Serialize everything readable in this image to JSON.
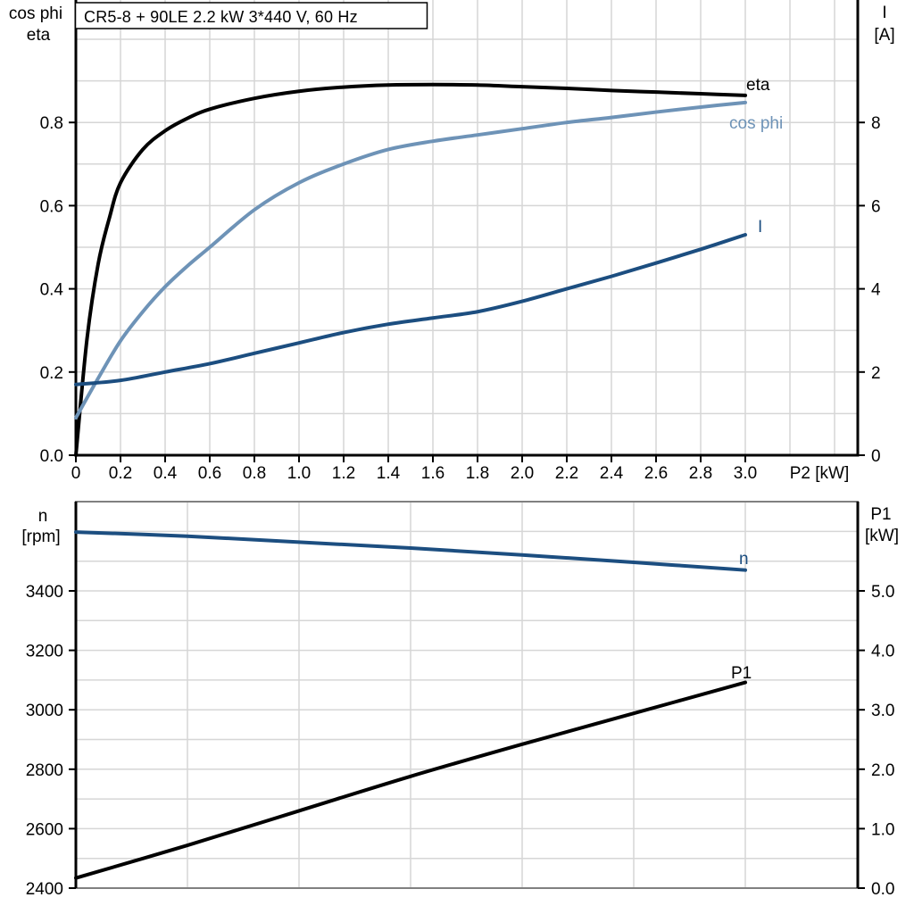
{
  "title": "CR5-8 + 90LE   2.2 kW   3*440 V, 60 Hz",
  "colors": {
    "black": "#000000",
    "dark_blue": "#1C4E80",
    "light_blue": "#6E93B7",
    "grid": "#D6D6D6",
    "frame_gray": "#808080",
    "background": "#FFFFFF"
  },
  "chart_data": [
    {
      "type": "line",
      "title": "CR5-8 + 90LE   2.2 kW   3*440 V, 60 Hz",
      "x_axis": {
        "label": "P2 [kW]",
        "min": 0,
        "max": 3.5,
        "tick_values": [
          0,
          0.2,
          0.4,
          0.6,
          0.8,
          1.0,
          1.2,
          1.4,
          1.6,
          1.8,
          2.0,
          2.2,
          2.4,
          2.6,
          2.8,
          3.0
        ],
        "tick_labels": [
          "0",
          "0.2",
          "0.4",
          "0.6",
          "0.8",
          "1.0",
          "1.2",
          "1.4",
          "1.6",
          "1.8",
          "2.0",
          "2.2",
          "2.4",
          "2.6",
          "2.8",
          "3.0"
        ],
        "grid_step": 0.2
      },
      "y_left": {
        "header": [
          "cos phi",
          "eta"
        ],
        "min": 0,
        "max": 0.98,
        "tick_values": [
          0,
          0.2,
          0.4,
          0.6,
          0.8
        ],
        "tick_labels": [
          "0.0",
          "0.2",
          "0.4",
          "0.6",
          "0.8"
        ],
        "grid_step": 0.1
      },
      "y_right": {
        "header": [
          "I",
          "[A]"
        ],
        "min": 0,
        "max": 9.8,
        "tick_values": [
          0,
          2,
          4,
          6,
          8
        ],
        "tick_labels": [
          "0",
          "2",
          "4",
          "6",
          "8"
        ]
      },
      "grid": true,
      "legend_position": "inline-labels",
      "series": [
        {
          "label": "eta",
          "axis": "left",
          "color_key": "black",
          "points": [
            [
              0,
              0
            ],
            [
              0.05,
              0.28
            ],
            [
              0.1,
              0.46
            ],
            [
              0.15,
              0.57
            ],
            [
              0.2,
              0.655
            ],
            [
              0.3,
              0.735
            ],
            [
              0.4,
              0.78
            ],
            [
              0.5,
              0.81
            ],
            [
              0.6,
              0.832
            ],
            [
              0.8,
              0.858
            ],
            [
              1.0,
              0.875
            ],
            [
              1.2,
              0.885
            ],
            [
              1.4,
              0.89
            ],
            [
              1.6,
              0.891
            ],
            [
              1.8,
              0.89
            ],
            [
              2.0,
              0.886
            ],
            [
              2.2,
              0.882
            ],
            [
              2.4,
              0.877
            ],
            [
              2.6,
              0.873
            ],
            [
              2.8,
              0.869
            ],
            [
              3.0,
              0.865
            ]
          ]
        },
        {
          "label": "cos phi",
          "axis": "left",
          "color_key": "light_blue",
          "points": [
            [
              0,
              0.09
            ],
            [
              0.1,
              0.185
            ],
            [
              0.2,
              0.275
            ],
            [
              0.3,
              0.345
            ],
            [
              0.4,
              0.405
            ],
            [
              0.5,
              0.455
            ],
            [
              0.6,
              0.5
            ],
            [
              0.8,
              0.59
            ],
            [
              1.0,
              0.655
            ],
            [
              1.2,
              0.7
            ],
            [
              1.4,
              0.735
            ],
            [
              1.6,
              0.755
            ],
            [
              1.8,
              0.77
            ],
            [
              2.0,
              0.785
            ],
            [
              2.2,
              0.8
            ],
            [
              2.4,
              0.812
            ],
            [
              2.6,
              0.825
            ],
            [
              2.8,
              0.837
            ],
            [
              3.0,
              0.848
            ]
          ]
        },
        {
          "label": "I",
          "axis": "right",
          "color_key": "dark_blue",
          "points": [
            [
              0,
              1.7
            ],
            [
              0.2,
              1.8
            ],
            [
              0.4,
              2.0
            ],
            [
              0.6,
              2.2
            ],
            [
              0.8,
              2.45
            ],
            [
              1.0,
              2.7
            ],
            [
              1.2,
              2.95
            ],
            [
              1.4,
              3.15
            ],
            [
              1.6,
              3.3
            ],
            [
              1.8,
              3.45
            ],
            [
              2.0,
              3.7
            ],
            [
              2.2,
              4.0
            ],
            [
              2.4,
              4.3
            ],
            [
              2.6,
              4.62
            ],
            [
              2.8,
              4.95
            ],
            [
              3.0,
              5.3
            ]
          ]
        }
      ]
    },
    {
      "type": "line",
      "x_axis": {
        "label": "",
        "min": 0,
        "max": 3.5,
        "tick_values": [],
        "tick_labels": [],
        "grid_step": 0.5
      },
      "y_left": {
        "header": [
          "n",
          "[rpm]"
        ],
        "min": 2400,
        "max": 3700,
        "tick_values": [
          2400,
          2600,
          2800,
          3000,
          3200,
          3400
        ],
        "tick_labels": [
          "2400",
          "2600",
          "2800",
          "3000",
          "3200",
          "3400"
        ],
        "grid_step": 100
      },
      "y_right": {
        "header": [
          "P1",
          "[kW]"
        ],
        "min": 0,
        "max": 6.5,
        "tick_values": [
          0,
          1,
          2,
          3,
          4,
          5
        ],
        "tick_labels": [
          "0.0",
          "1.0",
          "2.0",
          "3.0",
          "4.0",
          "5.0"
        ]
      },
      "grid": true,
      "legend_position": "inline-labels",
      "series": [
        {
          "label": "n",
          "axis": "left",
          "color_key": "dark_blue",
          "points": [
            [
              0,
              3598
            ],
            [
              0.5,
              3584
            ],
            [
              1.0,
              3564
            ],
            [
              1.5,
              3544
            ],
            [
              2.0,
              3521
            ],
            [
              2.5,
              3496
            ],
            [
              3.0,
              3470
            ]
          ]
        },
        {
          "label": "P1",
          "axis": "right",
          "color_key": "black",
          "points": [
            [
              0,
              0.17
            ],
            [
              0.5,
              0.72
            ],
            [
              1.0,
              1.3
            ],
            [
              1.5,
              1.88
            ],
            [
              2.0,
              2.42
            ],
            [
              2.5,
              2.94
            ],
            [
              3.0,
              3.46
            ]
          ]
        }
      ]
    }
  ]
}
